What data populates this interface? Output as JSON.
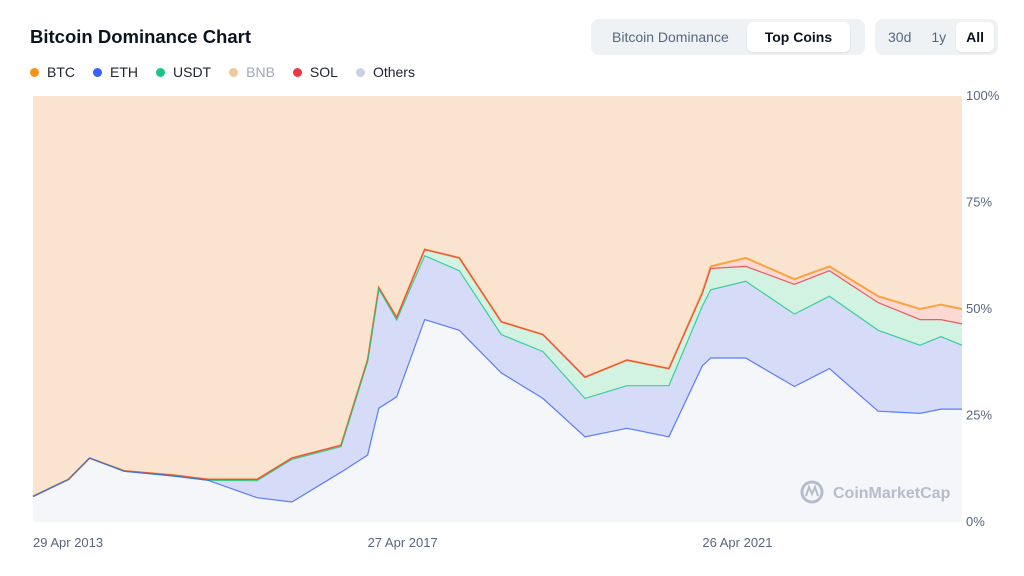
{
  "header": {
    "title": "Bitcoin Dominance Chart",
    "view_options": [
      {
        "label": "Bitcoin Dominance",
        "active": false
      },
      {
        "label": "Top Coins",
        "active": true
      }
    ],
    "range_options": [
      {
        "label": "30d",
        "active": false
      },
      {
        "label": "1y",
        "active": false
      },
      {
        "label": "All",
        "active": true
      }
    ]
  },
  "watermark": "CoinMarketCap",
  "chart_data": {
    "type": "area",
    "stacked": true,
    "ylim": [
      0,
      100
    ],
    "y_ticks": [
      "100%",
      "75%",
      "50%",
      "25%",
      "0%"
    ],
    "y_tick_values": [
      100,
      75,
      50,
      25,
      0
    ],
    "x_ticks": [
      "29 Apr 2013",
      "27 Apr 2017",
      "26 Apr 2021"
    ],
    "x_tick_values": [
      "2013-04-29",
      "2017-04-27",
      "2021-04-26"
    ],
    "x_range": [
      "2013-04-29",
      "2024-06-01"
    ],
    "x": [
      "2013-04-29",
      "2013-10-01",
      "2014-01-01",
      "2014-06-01",
      "2015-01-01",
      "2015-06-01",
      "2016-01-01",
      "2016-06-01",
      "2017-01-01",
      "2017-04-27",
      "2017-06-15",
      "2017-09-01",
      "2018-01-01",
      "2018-06-01",
      "2018-12-01",
      "2019-06-01",
      "2019-12-01",
      "2020-06-01",
      "2020-12-01",
      "2021-04-26",
      "2021-06-01",
      "2021-11-01",
      "2022-06-01",
      "2022-11-01",
      "2023-06-01",
      "2023-12-01",
      "2024-03-01",
      "2024-06-01"
    ],
    "legend": [
      {
        "name": "BTC",
        "color": "#f7931a",
        "visible": true
      },
      {
        "name": "ETH",
        "color": "#3861fb",
        "visible": true
      },
      {
        "name": "USDT",
        "color": "#16c784",
        "visible": true
      },
      {
        "name": "BNB",
        "color": "#f3ba2f",
        "visible": false
      },
      {
        "name": "SOL",
        "color": "#ea3943",
        "visible": true
      },
      {
        "name": "Others",
        "color": "#c8cfe6",
        "visible": true
      }
    ],
    "series": [
      {
        "name": "BTC",
        "color": "#f7931a",
        "fill": "#fbe4cf",
        "values": [
          94,
          90,
          85,
          88,
          89,
          90,
          90,
          85,
          82,
          62,
          45,
          52,
          36,
          38,
          53,
          56,
          66,
          62,
          64,
          46,
          40,
          38,
          43,
          40,
          47,
          50,
          49,
          50
        ]
      },
      {
        "name": "SOL",
        "color": "#ea3943",
        "fill": "#fcd9d2",
        "values": [
          0,
          0,
          0,
          0,
          0,
          0,
          0,
          0,
          0,
          0,
          0,
          0,
          0,
          0,
          0,
          0,
          0,
          0,
          0,
          0.3,
          0.5,
          2,
          1.2,
          1,
          1.5,
          2.5,
          3.5,
          3.5
        ]
      },
      {
        "name": "USDT",
        "color": "#16c784",
        "fill": "#d2f2e2",
        "values": [
          0,
          0,
          0,
          0.1,
          0.2,
          0.2,
          0.3,
          0.3,
          0.3,
          0.3,
          0.3,
          0.6,
          1.5,
          3,
          3,
          4,
          5,
          6,
          4,
          3,
          5,
          3.5,
          7,
          6,
          6.5,
          6,
          4,
          5
        ]
      },
      {
        "name": "ETH",
        "color": "#3861fb",
        "fill": "#d6dcf8",
        "values": [
          0,
          0,
          0,
          0,
          0,
          0,
          4,
          10,
          6,
          22,
          28,
          18,
          15,
          14,
          9,
          11,
          9,
          10,
          12,
          14,
          16,
          18,
          17,
          17,
          19,
          16,
          17,
          15
        ]
      },
      {
        "name": "Others",
        "color": "#c8cfe6",
        "fill": "#f5f6fa",
        "values": [
          6,
          10,
          15,
          11.9,
          10.8,
          9.8,
          5.7,
          4.7,
          11.7,
          15.7,
          26.7,
          29.4,
          47.5,
          45,
          35,
          29,
          20,
          22,
          20,
          36.7,
          38.5,
          38.5,
          31.8,
          36,
          26,
          25.5,
          26.5,
          26.5
        ]
      }
    ]
  }
}
